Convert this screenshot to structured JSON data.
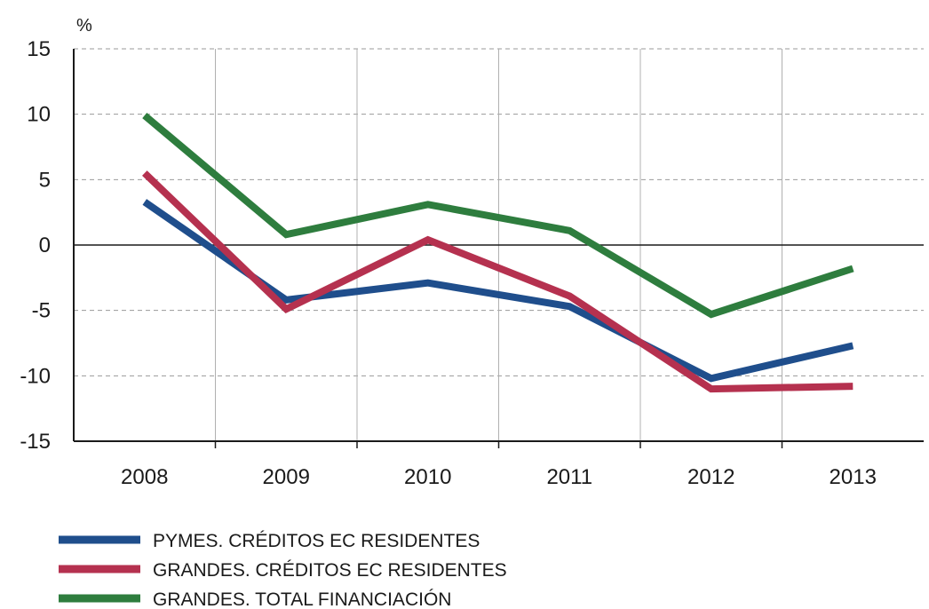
{
  "chart_data": {
    "type": "line",
    "unit_label": "%",
    "categories": [
      "2008",
      "2009",
      "2010",
      "2011",
      "2012",
      "2013"
    ],
    "ylim": [
      -15,
      15
    ],
    "yticks": [
      15,
      10,
      5,
      0,
      -5,
      -10,
      -15
    ],
    "ytick_labels": [
      "15",
      "10",
      "5",
      "0",
      "-5",
      "-10",
      "-15"
    ],
    "grid": true,
    "legend_position": "bottom-left",
    "series": [
      {
        "name": "PYMES. CRÉDITOS EC RESIDENTES",
        "color": "#1f4e8c",
        "values": [
          3.3,
          -4.2,
          -2.9,
          -4.7,
          -10.2,
          -7.7
        ]
      },
      {
        "name": "GRANDES. CRÉDITOS EC RESIDENTES",
        "color": "#b5314f",
        "values": [
          5.5,
          -4.9,
          0.4,
          -3.9,
          -11.0,
          -10.8
        ]
      },
      {
        "name": "GRANDES. TOTAL FINANCIACIÓN",
        "color": "#2e7d3e",
        "values": [
          9.9,
          0.8,
          3.1,
          1.1,
          -5.3,
          -1.8
        ]
      }
    ]
  }
}
